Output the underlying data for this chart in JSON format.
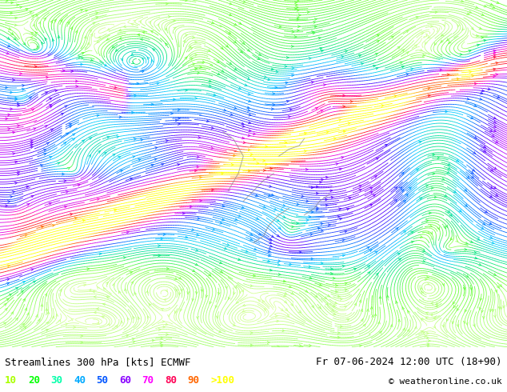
{
  "title_left": "Streamlines 300 hPa [kts] ECMWF",
  "title_right": "Fr 07-06-2024 12:00 UTC (18+90)",
  "copyright": "© weatheronline.co.uk",
  "legend_values": [
    "10",
    "20",
    "30",
    "40",
    "50",
    "60",
    "70",
    "80",
    "90",
    ">100"
  ],
  "legend_colors": [
    "#aaff00",
    "#00ff00",
    "#00ffaa",
    "#00aaff",
    "#0055ff",
    "#8800ff",
    "#ff00ff",
    "#ff0055",
    "#ff6600",
    "#ffff00"
  ],
  "background_color": "#ffffff",
  "map_background": "#ffffff",
  "fig_width": 6.34,
  "fig_height": 4.9,
  "dpi": 100,
  "text_color": "#000000",
  "font_size_title": 9,
  "font_size_legend": 9,
  "font_size_copyright": 8,
  "random_seed": 42
}
